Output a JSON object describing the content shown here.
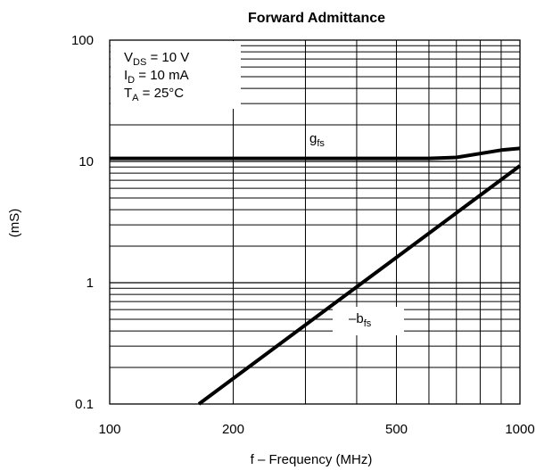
{
  "chart_data": {
    "type": "line",
    "title": "Forward Admittance",
    "xlabel": "f – Frequency (MHz)",
    "ylabel": "(mS)",
    "x_scale": "log",
    "y_scale": "log",
    "xlim": [
      100,
      1000
    ],
    "ylim": [
      0.1,
      100
    ],
    "x_ticks": [
      "100",
      "200",
      "500",
      "1000"
    ],
    "y_ticks": [
      "0.1",
      "1",
      "10",
      "100"
    ],
    "grid": true,
    "conditions": {
      "line1": {
        "main": "V",
        "sub": "DS",
        "rest": " = 10 V"
      },
      "line2": {
        "main": "I",
        "sub": "D",
        "rest": " = 10 mA"
      },
      "line3": {
        "main": "T",
        "sub": "A",
        "rest": " = 25°C"
      }
    },
    "series": [
      {
        "name": "gfs",
        "label": {
          "main": "g",
          "sub": "fs"
        },
        "x": [
          100,
          200,
          400,
          600,
          700,
          800,
          900,
          1000
        ],
        "y": [
          10.6,
          10.6,
          10.6,
          10.6,
          10.8,
          11.6,
          12.4,
          12.8
        ]
      },
      {
        "name": "-bfs",
        "label": {
          "main": "–b",
          "sub": "fs"
        },
        "x": [
          165,
          1000
        ],
        "y": [
          0.1,
          9.2
        ]
      }
    ]
  }
}
